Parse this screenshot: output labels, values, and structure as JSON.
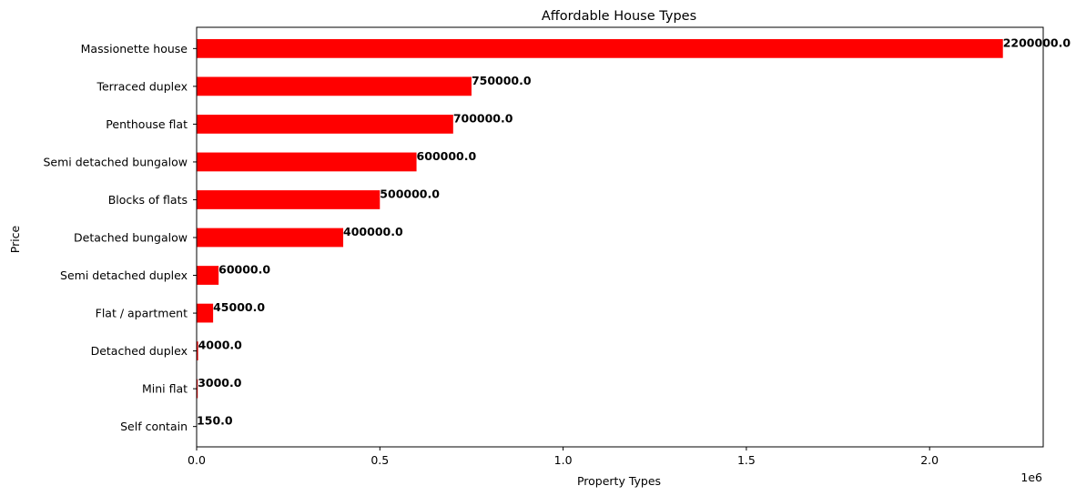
{
  "chart_data": {
    "type": "bar",
    "orientation": "horizontal",
    "title": "Affordable House Types",
    "xlabel": "Property Types",
    "ylabel": "Price",
    "x_offset_label": "1e6",
    "xlim": [
      0,
      2310000
    ],
    "xticks": [
      {
        "value": 0,
        "label": "0.0"
      },
      {
        "value": 500000,
        "label": "0.5"
      },
      {
        "value": 1000000,
        "label": "1.0"
      },
      {
        "value": 1500000,
        "label": "1.5"
      },
      {
        "value": 2000000,
        "label": "2.0"
      }
    ],
    "categories": [
      "Massionette house",
      "Terraced duplex",
      "Penthouse flat",
      "Semi detached bungalow",
      "Blocks of flats",
      "Detached bungalow",
      "Semi detached duplex",
      "Flat / apartment",
      "Detached duplex",
      "Mini flat",
      "Self contain"
    ],
    "values": [
      2200000,
      750000,
      700000,
      600000,
      500000,
      400000,
      60000,
      45000,
      4000,
      3000,
      150
    ],
    "value_labels": [
      "2200000.0",
      "750000.0",
      "700000.0",
      "600000.0",
      "500000.0",
      "400000.0",
      "60000.0",
      "45000.0",
      "4000.0",
      "3000.0",
      "150.0"
    ],
    "bar_color": "#ff0000",
    "grid": false,
    "legend": "none"
  }
}
